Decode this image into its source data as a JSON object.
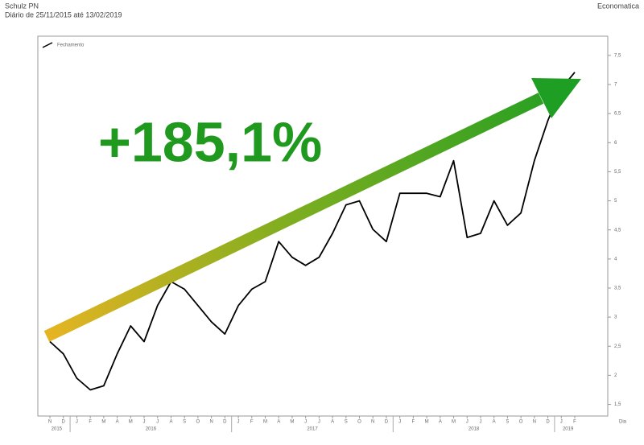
{
  "chart_data": {
    "type": "line",
    "title": "Schulz PN",
    "subtitle": "Diário de 25/11/2015 até 13/02/2019",
    "source": "Economatica",
    "annotation": "+185,1%",
    "x_label": "Dia",
    "x": [
      "2015-11",
      "2015-12",
      "2016-01",
      "2016-02",
      "2016-03",
      "2016-04",
      "2016-05",
      "2016-06",
      "2016-07",
      "2016-08",
      "2016-09",
      "2016-10",
      "2016-11",
      "2016-12",
      "2017-01",
      "2017-02",
      "2017-03",
      "2017-04",
      "2017-05",
      "2017-06",
      "2017-07",
      "2017-08",
      "2017-09",
      "2017-10",
      "2017-11",
      "2017-12",
      "2018-01",
      "2018-02",
      "2018-03",
      "2018-04",
      "2018-05",
      "2018-06",
      "2018-07",
      "2018-08",
      "2018-09",
      "2018-10",
      "2018-11",
      "2018-12",
      "2019-01",
      "2019-02"
    ],
    "x_tick_labels": [
      "N",
      "D",
      "J",
      "F",
      "M",
      "A",
      "M",
      "J",
      "J",
      "A",
      "S",
      "O",
      "N",
      "D",
      "J",
      "F",
      "M",
      "A",
      "M",
      "J",
      "J",
      "A",
      "S",
      "O",
      "N",
      "D",
      "J",
      "F",
      "M",
      "A",
      "M",
      "J",
      "J",
      "A",
      "S",
      "O",
      "N",
      "D",
      "J",
      "F"
    ],
    "years": [
      "2015",
      "2016",
      "2017",
      "2018",
      "2019"
    ],
    "series": [
      {
        "name": "Fechamento",
        "color": "#000000",
        "values": [
          2.58,
          2.37,
          1.95,
          1.75,
          1.82,
          2.37,
          2.85,
          2.58,
          3.2,
          3.61,
          3.48,
          3.2,
          2.92,
          2.71,
          3.2,
          3.48,
          3.61,
          4.3,
          4.03,
          3.89,
          4.03,
          4.44,
          4.93,
          5.0,
          4.51,
          4.3,
          5.13,
          5.13,
          5.13,
          5.07,
          5.69,
          4.37,
          4.44,
          5.0,
          4.58,
          4.79,
          5.69,
          6.38,
          6.93,
          7.21
        ]
      }
    ],
    "ylim": [
      1.3,
      7.83
    ],
    "yticks": [
      {
        "value": 1.5,
        "label": "1,5"
      },
      2,
      {
        "value": 2.5,
        "label": "2,5"
      },
      3,
      {
        "value": 3.5,
        "label": "3,5"
      },
      4,
      {
        "value": 4.5,
        "label": "4,5"
      },
      5,
      {
        "value": 5.5,
        "label": "5,5"
      },
      6,
      {
        "value": 6.5,
        "label": "6,5"
      },
      7,
      {
        "value": 7.5,
        "label": "7,5"
      }
    ],
    "grid": false,
    "legend": "top-left"
  }
}
